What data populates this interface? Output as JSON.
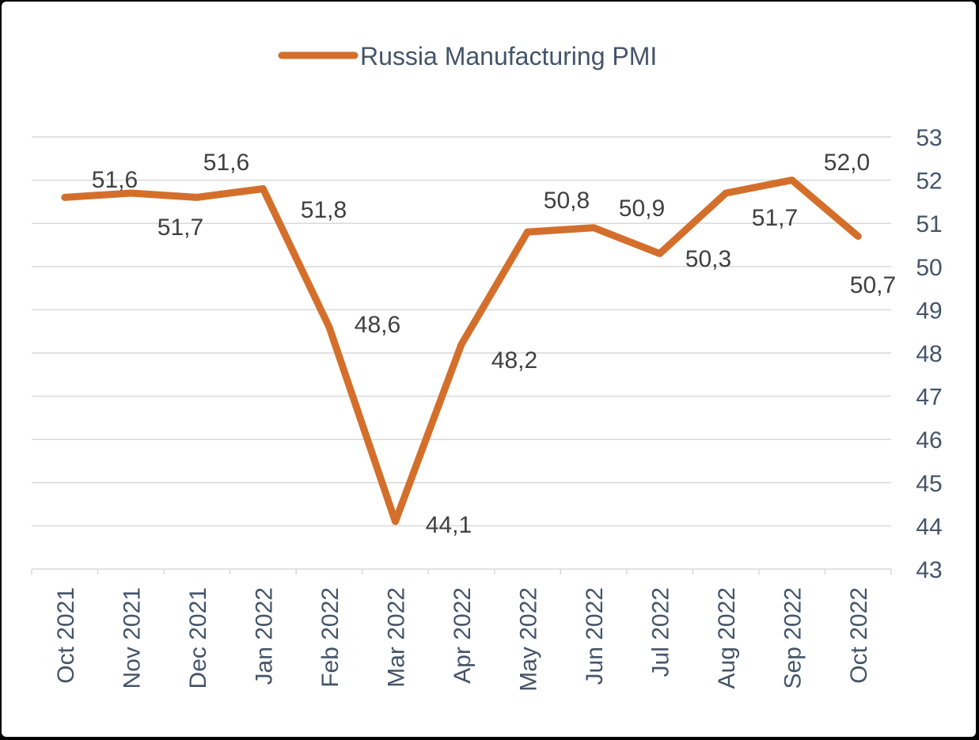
{
  "chart_data": {
    "type": "line",
    "categories": [
      "Oct 2021",
      "Nov 2021",
      "Dec 2021",
      "Jan 2022",
      "Feb 2022",
      "Mar 2022",
      "Apr 2022",
      "May 2022",
      "Jun 2022",
      "Jul 2022",
      "Aug 2022",
      "Sep 2022",
      "Oct 2022"
    ],
    "series": [
      {
        "name": "Russia Manufacturing PMI",
        "values": [
          51.6,
          51.7,
          51.6,
          51.8,
          48.6,
          44.1,
          48.2,
          50.8,
          50.9,
          50.3,
          51.7,
          52.0,
          50.7
        ],
        "data_labels": [
          "51,6",
          "51,7",
          "51,6",
          "51,8",
          "48,6",
          "44,1",
          "48,2",
          "50,8",
          "50,9",
          "50,3",
          "51,7",
          "52,0",
          "50,7"
        ]
      }
    ],
    "ylim": [
      43,
      53
    ],
    "yticks": [
      "43",
      "44",
      "45",
      "46",
      "47",
      "48",
      "49",
      "50",
      "51",
      "52",
      "53"
    ],
    "y_axis_side": "right",
    "grid": true,
    "legend_position": "top-center",
    "colors": {
      "line": "#d46f2b",
      "grid": "#d9d9d9",
      "axis_text": "#44546a",
      "label_text": "#404040"
    }
  }
}
